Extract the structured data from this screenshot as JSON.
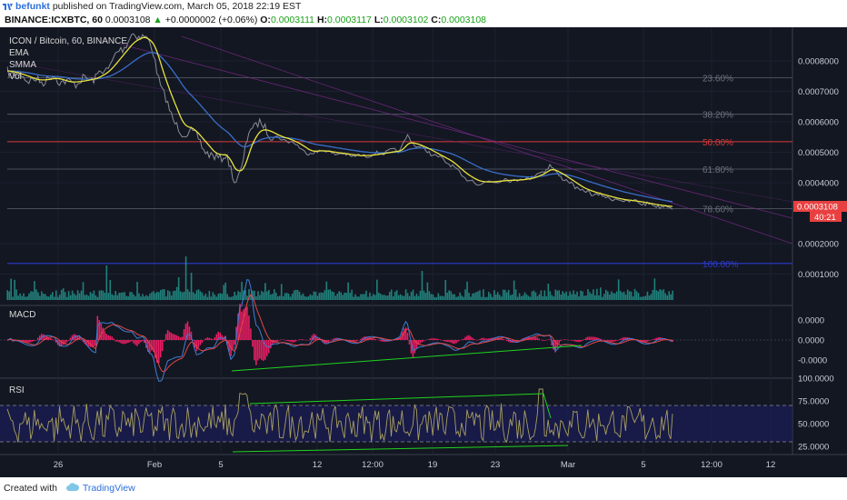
{
  "header": {
    "author": "befunkt",
    "published_text": "published on TradingView.com, March 05, 2018 22:19 EST"
  },
  "ticker": {
    "symbol": "BINANCE:ICXBTC, 60",
    "price": "0.0003108",
    "change": "+0.0000002 (+0.06%)",
    "o_label": "O:",
    "o_value": "0.0003111",
    "h_label": "H:",
    "h_value": "0.0003117",
    "l_label": "L:",
    "l_value": "0.0003102",
    "c_label": "C:",
    "c_value": "0.0003108"
  },
  "legend": {
    "title": "ICON / Bitcoin, 60, BINANCE",
    "items": [
      "EMA",
      "SMMA",
      "Vol"
    ]
  },
  "colors": {
    "background": "#131722",
    "price": "#8a8d96",
    "ema": "#e8e23c",
    "smma": "#3a6ec8",
    "volume": "#26a69a",
    "fib_50": "#d93b3b",
    "fib_level": "#5c616e",
    "fib_label": "#6f7480",
    "fib_100": "#2c3bd0",
    "macd_line": "#3e7fd4",
    "signal_line": "#e04848",
    "histogram": "#e91e63",
    "rsi_line": "#a8a060",
    "rsi_band": "#1e1e66",
    "divergence": "#1fd41f",
    "last_price_bg": "#e84040"
  },
  "price_axis": {
    "ticks": [
      "0.0008000",
      "0.0007000",
      "0.0006000",
      "0.0005000",
      "0.0004000",
      "0.0002000",
      "0.0001000"
    ],
    "tick_values": [
      0.0008,
      0.0007,
      0.0006,
      0.0005,
      0.0004,
      0.0002,
      0.0001
    ],
    "last_price": "0.0003108",
    "countdown": "40:21"
  },
  "fib_levels": [
    {
      "label": "23.60%",
      "value": 0.000745
    },
    {
      "label": "38.20%",
      "value": 0.000625
    },
    {
      "label": "50.00%",
      "value": 0.000535
    },
    {
      "label": "61.80%",
      "value": 0.000445
    },
    {
      "label": "78.60%",
      "value": 0.000315
    },
    {
      "label": "100.00%",
      "value": 0.000135
    }
  ],
  "macd": {
    "label": "MACD",
    "ticks": [
      "0.0000",
      "0.0000",
      "-0.0000"
    ]
  },
  "rsi": {
    "label": "RSI",
    "ticks": [
      "100.0000",
      "75.0000",
      "50.0000",
      "25.0000"
    ],
    "tick_values": [
      100,
      75,
      50,
      25
    ]
  },
  "time_axis": {
    "labels": [
      "26",
      "Feb",
      "5",
      "12",
      "12:00",
      "19",
      "23",
      "Mar",
      "5",
      "12:00",
      "12"
    ]
  },
  "footer": {
    "created_with": "Created with",
    "brand": "TradingView"
  },
  "chart_data": {
    "type": "line",
    "title": "ICON / Bitcoin, 60, BINANCE",
    "x": [
      "26",
      "Feb",
      "5",
      "12",
      "12:00",
      "19",
      "23",
      "Mar",
      "5"
    ],
    "series": [
      {
        "name": "ICON / Bitcoin",
        "values": [
          0.00072,
          0.00079,
          0.00043,
          0.0005,
          0.00047,
          0.00047,
          0.0004,
          0.00034,
          0.00031
        ]
      },
      {
        "name": "EMA",
        "values": [
          0.00072,
          0.00077,
          0.00046,
          0.0005,
          0.00047,
          0.00046,
          0.0004,
          0.00035,
          0.00031
        ]
      },
      {
        "name": "SMMA",
        "values": [
          0.00074,
          0.00075,
          0.00058,
          0.00052,
          0.00049,
          0.00047,
          0.00042,
          0.00038,
          0.00034
        ]
      }
    ],
    "ylim": [
      3e-05,
      0.00085
    ],
    "rsi_range": [
      20,
      100
    ]
  }
}
